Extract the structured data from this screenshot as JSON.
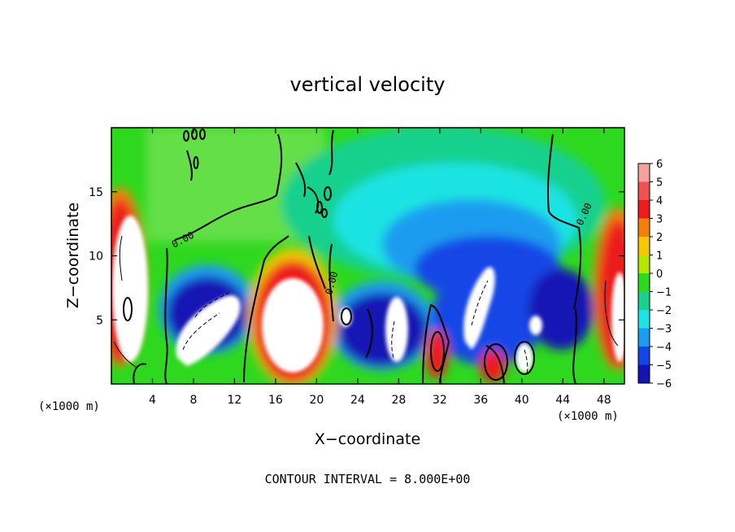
{
  "chart_data": {
    "type": "heatmap",
    "title": "vertical velocity",
    "xlabel": "X−coordinate",
    "ylabel": "Z−coordinate",
    "x_unit_left": "(×1000 m)",
    "x_unit_right": "(×1000 m)",
    "footer": "CONTOUR INTERVAL = 8.000E+00",
    "xlim": [
      0,
      50
    ],
    "ylim": [
      0,
      20
    ],
    "x_ticks": [
      4,
      8,
      12,
      16,
      20,
      24,
      28,
      32,
      36,
      40,
      44,
      48
    ],
    "x_tick_labels": [
      "4",
      "8",
      "12",
      "16",
      "20",
      "24",
      "28",
      "32",
      "36",
      "40",
      "44",
      "48"
    ],
    "y_ticks": [
      5,
      10,
      15
    ],
    "y_tick_labels": [
      "5",
      "10",
      "15"
    ],
    "contour_labels": [
      "0.00",
      "0.00",
      "0.00"
    ],
    "colorbar": {
      "levels": [
        6,
        5,
        4,
        3,
        2,
        1,
        0,
        -1,
        -2,
        -3,
        -4,
        -5,
        -6
      ],
      "labels": [
        "6",
        "5",
        "4",
        "3",
        "2",
        "1",
        "0",
        "−1",
        "−2",
        "−3",
        "−4",
        "−5",
        "−6"
      ],
      "colors": [
        "#f4a0a0",
        "#ef5050",
        "#ec1c1c",
        "#f57f0a",
        "#f5c800",
        "#b7e600",
        "#2ed81e",
        "#19d08e",
        "#1ee3e3",
        "#1a9cf0",
        "#1446e6",
        "#1414b4",
        "#7a16c8"
      ]
    },
    "features": [
      {
        "kind": "updraft",
        "x": 1.5,
        "z": 8.5,
        "w_max": 6
      },
      {
        "kind": "downdraft",
        "x": 9.5,
        "z": 4.5,
        "w_min": -6
      },
      {
        "kind": "updraft",
        "x": 18.0,
        "z": 5.5,
        "w_max": 6
      },
      {
        "kind": "downdraft",
        "x": 27.5,
        "z": 4.5,
        "w_min": -6
      },
      {
        "kind": "updraft",
        "x": 31.5,
        "z": 2.0,
        "w_max": 5
      },
      {
        "kind": "downdraft",
        "x": 36.5,
        "z": 6.0,
        "w_min": -6
      },
      {
        "kind": "updraft",
        "x": 37.0,
        "z": 1.5,
        "w_max": 5
      },
      {
        "kind": "downdraft",
        "x": 40.5,
        "z": 2.5,
        "w_min": -6
      },
      {
        "kind": "downdraft",
        "x": 42.0,
        "z": 5.5,
        "w_min": -6
      },
      {
        "kind": "updraft",
        "x": 49.0,
        "z": 7.0,
        "w_max": 6
      }
    ]
  }
}
